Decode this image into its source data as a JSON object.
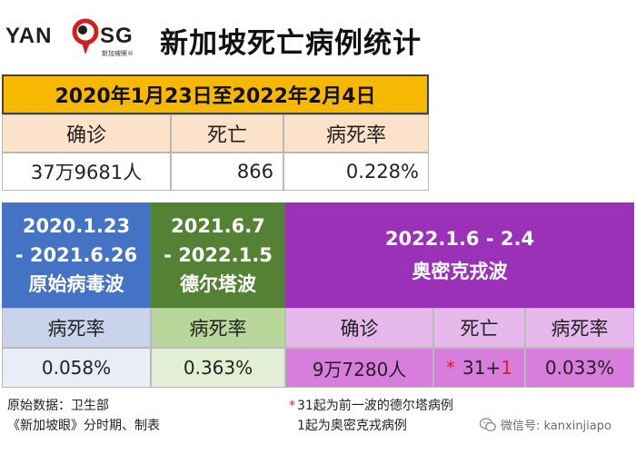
{
  "header": {
    "logo_left": "YAN",
    "logo_right": "SG",
    "logo_sub": "新加坡眼®",
    "title": "新加坡死亡病例统计"
  },
  "summary": {
    "period": "2020年1月23日至2022年2月4日",
    "labels": [
      "确诊",
      "死亡",
      "病死率"
    ],
    "values": [
      "37万9681人",
      "866",
      "0.228%"
    ]
  },
  "waves": {
    "original": {
      "dates_line1": "2020.1.23",
      "dates_line2": "- 2021.6.26",
      "name": "原始病毒波",
      "label": "病死率",
      "value": "0.058%"
    },
    "delta": {
      "dates_line1": "2021.6.7",
      "dates_line2": "- 2022.1.5",
      "name": "德尔塔波",
      "label": "病死率",
      "value": "0.363%"
    },
    "omicron": {
      "dates": "2022.1.6 - 2.4",
      "name": "奥密克戎波",
      "labels": [
        "确诊",
        "死亡",
        "病死率"
      ],
      "cases": "9万7280人",
      "deaths_star": "*",
      "deaths_part1": "31+",
      "deaths_part2": "1",
      "rate": "0.033%"
    }
  },
  "footer": {
    "source_line1": "原始数据：卫生部",
    "source_line2": "《新加坡眼》分时期、制表",
    "note_star": "*",
    "note_line1": "31起为前一波的德尔塔病例",
    "note_line2": "1起为奥密克戎病例",
    "wechat": "微信号: kanxinjiapo"
  },
  "colors": {
    "gold": "#f6b800",
    "blue": "#4472c4",
    "green": "#548235",
    "purple": "#9b30b9",
    "red": "#e0201a"
  }
}
